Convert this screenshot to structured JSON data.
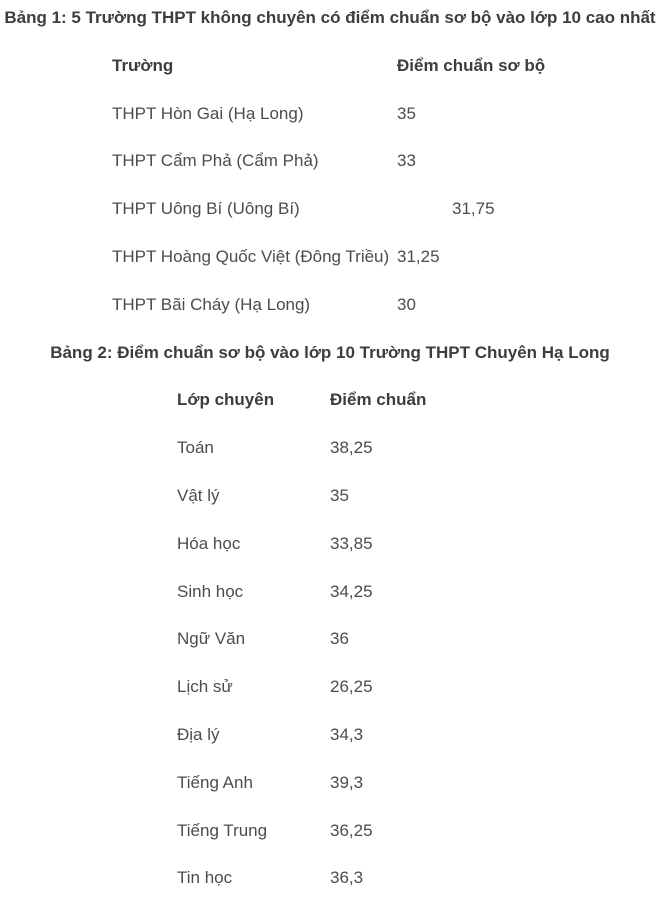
{
  "colors": {
    "background": "#ffffff",
    "body_text": "#4c4c4c",
    "heading_text": "#3d3d3d"
  },
  "table1": {
    "title": "Bảng 1: 5 Trường THPT không chuyên có điểm chuẩn sơ bộ vào lớp 10 cao nhất",
    "columns": {
      "name": "Trường",
      "score": "Điểm chuẩn sơ bộ"
    },
    "rows": [
      {
        "name": "THPT Hòn Gai (Hạ Long)",
        "score": "35"
      },
      {
        "name": "THPT Cẩm Phả (Cẩm Phả)",
        "score": "33"
      },
      {
        "name": "THPT Uông Bí (Uông Bí)",
        "score": "31,75",
        "score_indent": true
      },
      {
        "name": "THPT Hoàng Quốc Việt (Đông Triều)",
        "score": "31,25"
      },
      {
        "name": "THPT Bãi Cháy (Hạ Long)",
        "score": "30"
      }
    ]
  },
  "table2": {
    "title": "Bảng 2: Điểm chuẩn sơ bộ vào lớp 10 Trường THPT Chuyên Hạ Long",
    "columns": {
      "name": "Lớp chuyên",
      "score": "Điểm chuẩn"
    },
    "rows": [
      {
        "name": "Toán",
        "score": "38,25"
      },
      {
        "name": "Vật lý",
        "score": "35"
      },
      {
        "name": "Hóa học",
        "score": "33,85"
      },
      {
        "name": "Sinh học",
        "score": "34,25"
      },
      {
        "name": "Ngữ Văn",
        "score": "36"
      },
      {
        "name": "Lịch sử",
        "score": "26,25"
      },
      {
        "name": "Địa lý",
        "score": "34,3"
      },
      {
        "name": "Tiếng Anh",
        "score": "39,3"
      },
      {
        "name": "Tiếng Trung",
        "score": "36,25"
      },
      {
        "name": "Tin học",
        "score": "36,3"
      }
    ]
  }
}
